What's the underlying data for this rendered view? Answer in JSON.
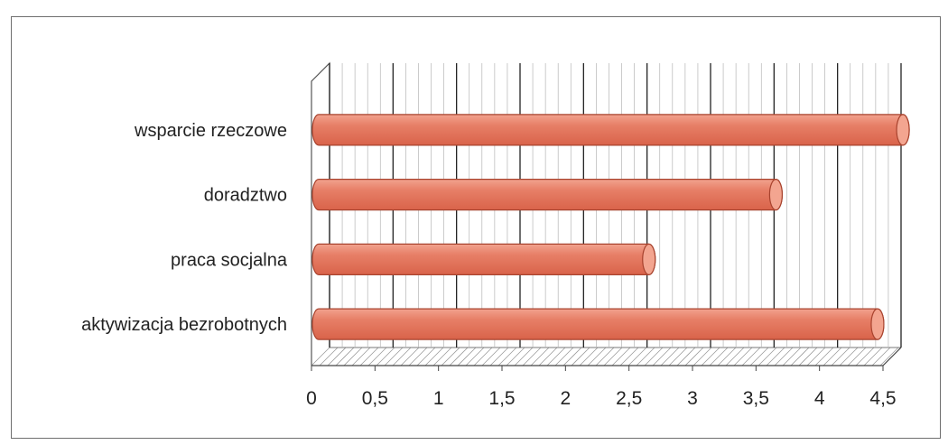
{
  "chart_data": {
    "type": "bar",
    "orientation": "horizontal",
    "style": "3d-cylinder",
    "categories": [
      "aktywizacja bezrobotnych",
      "praca socjalna",
      "doradztwo",
      "wsparcie rzeczowe"
    ],
    "values": [
      4.4,
      2.6,
      3.6,
      4.6
    ],
    "xlim": [
      0,
      4.5
    ],
    "xticks": [
      "0",
      "0,5",
      "1",
      "1,5",
      "2",
      "2,5",
      "3",
      "3,5",
      "4",
      "4,5"
    ],
    "grid": true,
    "legend": "none",
    "title": "",
    "xlabel": "",
    "ylabel": "",
    "colors": {
      "bar": "#e77f67",
      "bar_edge": "#a8432e",
      "bar_end": "#f3a590"
    }
  }
}
